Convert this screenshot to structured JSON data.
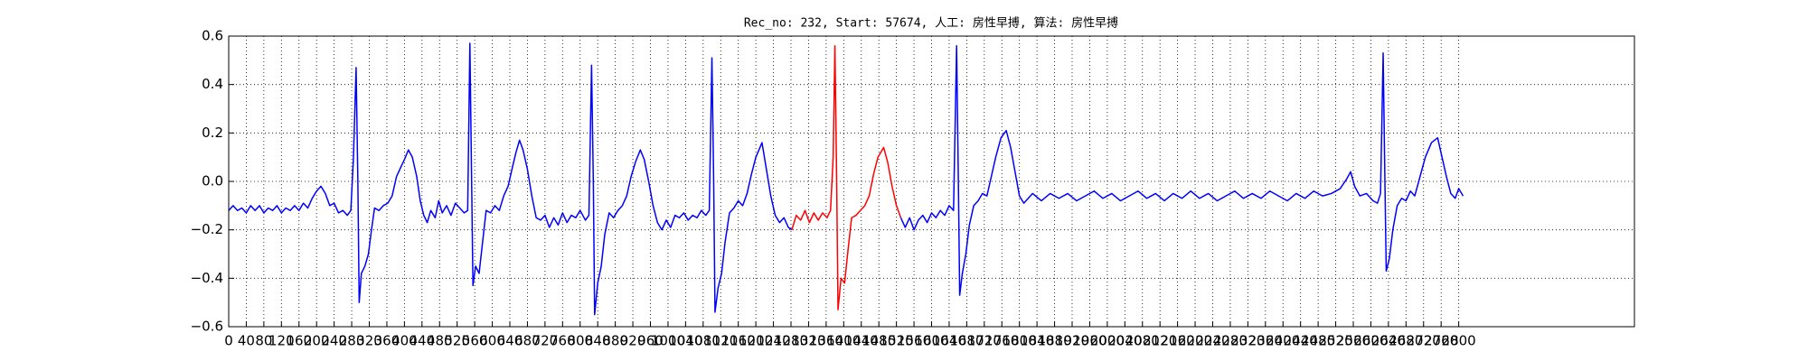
{
  "chart_data": {
    "type": "line",
    "title": "Rec_no: 232, Start: 57674, 人工: 房性早搏, 算法: 房性早搏",
    "xlim": [
      0,
      3200
    ],
    "ylim": [
      -0.6,
      0.6
    ],
    "xticks": [
      0,
      40,
      80,
      120,
      160,
      200,
      240,
      280,
      320,
      360,
      400,
      440,
      480,
      520,
      560,
      600,
      640,
      680,
      720,
      760,
      800,
      840,
      880,
      920,
      960,
      1000,
      1040,
      1080,
      1120,
      1160,
      1200,
      1240,
      1280,
      1320,
      1360,
      1400,
      1440,
      1480,
      1520,
      1560,
      1600,
      1640,
      1680,
      1720,
      1760,
      1800,
      1840,
      1880,
      1920,
      1960,
      2000,
      2040,
      2080,
      2120,
      2160,
      2200,
      2240,
      2280,
      2320,
      2360,
      2400,
      2440,
      2480,
      2520,
      2560,
      2600,
      2640,
      2680,
      2720,
      2760,
      2800
    ],
    "yticks": [
      {
        "value": -0.6,
        "label": "−0.6"
      },
      {
        "value": -0.4,
        "label": "−0.4"
      },
      {
        "value": -0.2,
        "label": "−0.2"
      },
      {
        "value": 0,
        "label": "0.0"
      },
      0.2,
      0.4,
      0.6
    ],
    "grid": true,
    "series": [
      {
        "color": "#0000ff",
        "x": [
          0,
          10,
          20,
          30,
          40,
          50,
          60,
          70,
          80,
          90,
          100,
          110,
          120,
          130,
          140,
          150,
          160,
          170,
          180,
          190,
          200,
          210,
          220,
          230,
          240,
          250,
          260,
          270,
          278,
          284,
          290,
          294,
          297,
          302,
          310,
          318,
          325,
          332,
          342,
          352,
          362,
          372,
          382,
          392,
          400,
          409,
          418,
          428,
          436,
          444,
          452,
          460,
          470,
          478,
          486,
          496,
          506,
          516,
          526,
          536,
          544,
          549,
          553,
          556,
          562,
          570,
          578,
          586,
          596,
          606,
          616,
          626,
          636,
          646,
          654,
          662,
          670,
          680,
          690,
          700,
          710,
          720,
          730,
          740,
          750,
          760,
          770,
          780,
          790,
          800,
          812,
          820,
          826,
          830,
          833,
          840,
          848,
          856,
          866,
          876,
          886,
          896,
          906,
          916,
          926,
          937,
          946,
          956,
          966,
          976,
          986,
          996,
          1006,
          1016,
          1026,
          1036,
          1046,
          1056,
          1066,
          1076,
          1086,
          1094,
          1100,
          1104,
          1107,
          1114,
          1122,
          1130,
          1140,
          1150,
          1160,
          1170,
          1180,
          1190,
          1200,
          1214,
          1224,
          1234,
          1244,
          1254,
          1264,
          1274,
          1282
        ],
        "values": [
          -0.12,
          -0.1,
          -0.12,
          -0.11,
          -0.13,
          -0.1,
          -0.12,
          -0.1,
          -0.13,
          -0.11,
          -0.12,
          -0.1,
          -0.13,
          -0.11,
          -0.12,
          -0.1,
          -0.12,
          -0.09,
          -0.11,
          -0.07,
          -0.04,
          -0.02,
          -0.05,
          -0.1,
          -0.09,
          -0.13,
          -0.12,
          -0.14,
          -0.12,
          0.1,
          0.47,
          0.0,
          -0.5,
          -0.38,
          -0.35,
          -0.3,
          -0.2,
          -0.11,
          -0.12,
          -0.1,
          -0.09,
          -0.06,
          0.02,
          0.06,
          0.09,
          0.13,
          0.1,
          0.02,
          -0.08,
          -0.14,
          -0.17,
          -0.12,
          -0.15,
          -0.08,
          -0.13,
          -0.1,
          -0.14,
          -0.09,
          -0.11,
          -0.13,
          -0.12,
          0.57,
          0.0,
          -0.43,
          -0.35,
          -0.38,
          -0.25,
          -0.12,
          -0.13,
          -0.1,
          -0.12,
          -0.06,
          -0.02,
          0.06,
          0.12,
          0.17,
          0.13,
          0.05,
          -0.06,
          -0.15,
          -0.16,
          -0.14,
          -0.19,
          -0.15,
          -0.18,
          -0.13,
          -0.17,
          -0.14,
          -0.15,
          -0.12,
          -0.16,
          -0.14,
          0.48,
          0.0,
          -0.55,
          -0.42,
          -0.35,
          -0.22,
          -0.13,
          -0.15,
          -0.12,
          -0.1,
          -0.06,
          0.02,
          0.08,
          0.13,
          0.09,
          0.0,
          -0.1,
          -0.17,
          -0.2,
          -0.16,
          -0.19,
          -0.14,
          -0.15,
          -0.13,
          -0.16,
          -0.14,
          -0.15,
          -0.12,
          -0.14,
          -0.12,
          0.51,
          0.0,
          -0.54,
          -0.44,
          -0.38,
          -0.25,
          -0.13,
          -0.11,
          -0.08,
          -0.1,
          -0.05,
          0.03,
          0.1,
          0.16,
          0.05,
          -0.06,
          -0.14,
          -0.17,
          -0.15,
          -0.19,
          -0.2
        ]
      },
      {
        "color": "#ff0000",
        "x": [
          1282,
          1292,
          1302,
          1312,
          1322,
          1332,
          1342,
          1352,
          1362,
          1370,
          1376,
          1380,
          1384,
          1387,
          1394,
          1402,
          1410,
          1418,
          1428,
          1438,
          1448,
          1458,
          1468,
          1478,
          1491,
          1500,
          1510,
          1520,
          1530
        ],
        "values": [
          -0.2,
          -0.14,
          -0.16,
          -0.12,
          -0.17,
          -0.13,
          -0.16,
          -0.13,
          -0.15,
          -0.12,
          0.1,
          0.56,
          0.0,
          -0.53,
          -0.4,
          -0.42,
          -0.28,
          -0.15,
          -0.14,
          -0.12,
          -0.1,
          -0.06,
          0.03,
          0.1,
          0.14,
          0.08,
          -0.02,
          -0.1,
          -0.15
        ]
      },
      {
        "color": "#0000ff",
        "x": [
          1530,
          1540,
          1550,
          1560,
          1570,
          1580,
          1590,
          1600,
          1610,
          1620,
          1630,
          1640,
          1650,
          1657,
          1661,
          1664,
          1670,
          1678,
          1686,
          1696,
          1706,
          1716,
          1726,
          1736,
          1746,
          1758,
          1770,
          1780,
          1790,
          1800,
          1810,
          1830,
          1850,
          1870,
          1890,
          1910,
          1930,
          1950,
          1970,
          1990,
          2010,
          2030,
          2050,
          2070,
          2090,
          2110,
          2130,
          2150,
          2170,
          2190,
          2210,
          2230,
          2250,
          2270,
          2290,
          2310,
          2330,
          2350,
          2370,
          2390,
          2410,
          2430,
          2450,
          2470,
          2490,
          2510,
          2530,
          2545,
          2554,
          2563,
          2575,
          2590,
          2605,
          2615,
          2622,
          2628,
          2632,
          2635,
          2642,
          2650,
          2660,
          2670,
          2680,
          2690,
          2700,
          2712,
          2724,
          2738,
          2752,
          2762,
          2772,
          2782,
          2792,
          2800,
          2810
        ],
        "values": [
          -0.15,
          -0.19,
          -0.15,
          -0.2,
          -0.16,
          -0.14,
          -0.17,
          -0.13,
          -0.15,
          -0.12,
          -0.14,
          -0.1,
          -0.12,
          0.56,
          0.0,
          -0.47,
          -0.38,
          -0.3,
          -0.18,
          -0.1,
          -0.08,
          -0.05,
          -0.06,
          0.02,
          0.1,
          0.18,
          0.21,
          0.14,
          0.04,
          -0.06,
          -0.09,
          -0.05,
          -0.08,
          -0.05,
          -0.07,
          -0.05,
          -0.08,
          -0.06,
          -0.04,
          -0.07,
          -0.05,
          -0.08,
          -0.06,
          -0.04,
          -0.07,
          -0.05,
          -0.08,
          -0.05,
          -0.07,
          -0.04,
          -0.07,
          -0.05,
          -0.08,
          -0.06,
          -0.04,
          -0.07,
          -0.05,
          -0.07,
          -0.04,
          -0.06,
          -0.08,
          -0.05,
          -0.07,
          -0.04,
          -0.06,
          -0.05,
          -0.03,
          0.01,
          0.04,
          -0.02,
          -0.06,
          -0.05,
          -0.08,
          -0.09,
          -0.05,
          0.53,
          0.0,
          -0.37,
          -0.32,
          -0.2,
          -0.1,
          -0.07,
          -0.08,
          -0.04,
          -0.06,
          0.02,
          0.1,
          0.16,
          0.18,
          0.1,
          0.02,
          -0.05,
          -0.07,
          -0.03,
          -0.06
        ]
      }
    ]
  }
}
